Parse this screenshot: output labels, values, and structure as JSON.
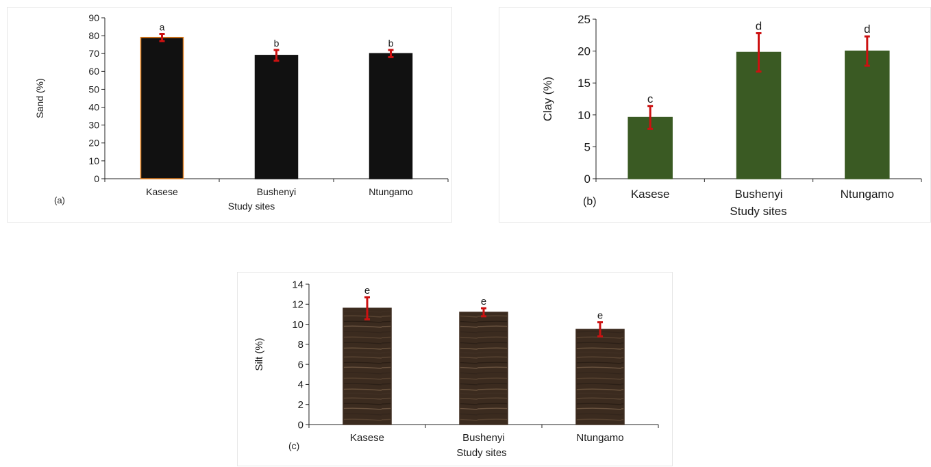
{
  "chart_data": [
    {
      "id": "a",
      "type": "bar",
      "panel_label": "(a)",
      "xlabel": "Study sites",
      "ylabel": "Sand (%)",
      "categories": [
        "Kasese",
        "Bushenyi",
        "Ntungamo"
      ],
      "values": [
        79,
        69,
        70
      ],
      "errors": [
        2,
        3,
        2
      ],
      "letters": [
        "a",
        "b",
        "b"
      ],
      "ylim": [
        0,
        90
      ],
      "yticks": [
        0,
        10,
        20,
        30,
        40,
        50,
        60,
        70,
        80,
        90
      ],
      "bar_colors": [
        "#111111",
        "#111111",
        "#111111"
      ],
      "bar_outlines": [
        "#e07b1a",
        "#111111",
        "#111111"
      ],
      "error_color": "#cc1111"
    },
    {
      "id": "b",
      "type": "bar",
      "panel_label": "(b)",
      "xlabel": "Study sites",
      "ylabel": "Clay (%)",
      "categories": [
        "Kasese",
        "Bushenyi",
        "Ntungamo"
      ],
      "values": [
        9.6,
        19.8,
        20.0
      ],
      "errors": [
        1.8,
        3.0,
        2.3
      ],
      "letters": [
        "c",
        "d",
        "d"
      ],
      "ylim": [
        0,
        25
      ],
      "yticks": [
        0,
        5,
        10,
        15,
        20,
        25
      ],
      "bar_colors": [
        "#3a5a23",
        "#3a5a23",
        "#3a5a23"
      ],
      "bar_outlines": [
        "#3a5a23",
        "#3a5a23",
        "#3a5a23"
      ],
      "error_color": "#cc1111"
    },
    {
      "id": "c",
      "type": "bar",
      "panel_label": "(c)",
      "xlabel": "Study sites",
      "ylabel": "Silt (%)",
      "categories": [
        "Kasese",
        "Bushenyi",
        "Ntungamo"
      ],
      "values": [
        11.6,
        11.2,
        9.5
      ],
      "errors": [
        1.1,
        0.4,
        0.7
      ],
      "letters": [
        "e",
        "e",
        "e"
      ],
      "ylim": [
        0,
        14
      ],
      "yticks": [
        0,
        2,
        4,
        6,
        8,
        10,
        12,
        14
      ],
      "bar_colors": [
        "#3e2d20",
        "#3e2d20",
        "#3e2d20"
      ],
      "bar_outlines": [
        "#3e2d20",
        "#3e2d20",
        "#3e2d20"
      ],
      "bar_texture": "wood",
      "error_color": "#cc1111"
    }
  ]
}
